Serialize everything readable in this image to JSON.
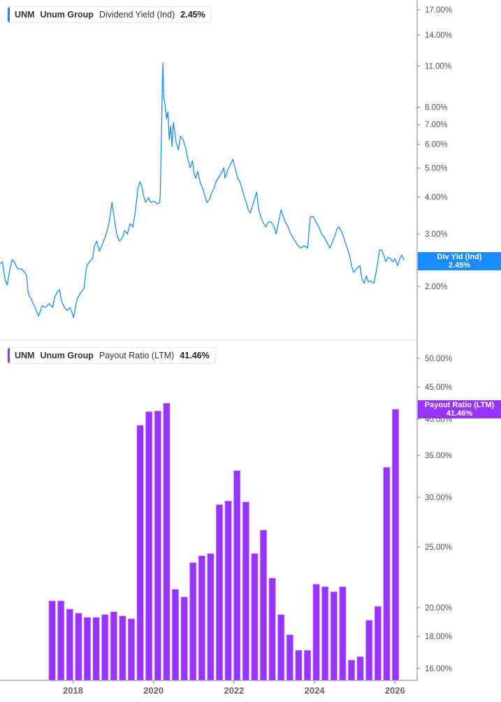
{
  "colors": {
    "yield": "#1a8cff",
    "payout": "#9933ff",
    "axis": "#aaaaaa"
  },
  "top_legend": {
    "ticker": "UNM",
    "company": "Unum Group",
    "metric": "Dividend Yield (Ind)",
    "value": "2.45%"
  },
  "top_tag": {
    "label": "Div Yld (Ind)",
    "value": "2.45%"
  },
  "bottom_legend": {
    "ticker": "UNM",
    "company": "Unum Group",
    "metric": "Payout Ratio (LTM)",
    "value": "41.46%"
  },
  "bottom_tag": {
    "label": "Payout Ratio (LTM)",
    "value": "41.46%"
  },
  "chart_data": [
    {
      "type": "line",
      "scale": "log",
      "y_ticks": [
        17,
        14,
        11,
        8,
        7,
        6,
        5,
        4,
        3,
        2
      ],
      "y_tick_labels": [
        "17.00%",
        "14.00%",
        "11.00%",
        "8.00%",
        "7.00%",
        "6.00%",
        "5.00%",
        "4.00%",
        "3.00%",
        "2.00%"
      ],
      "series": [
        {
          "name": "Dividend Yield (Ind)",
          "points": [
            [
              "2016-03-11",
              2.38
            ],
            [
              "2016-03-30",
              2.42
            ],
            [
              "2016-04-24",
              2.11
            ],
            [
              "2016-05-13",
              2.02
            ],
            [
              "2016-06-08",
              2.29
            ],
            [
              "2016-06-27",
              2.46
            ],
            [
              "2016-07-16",
              2.42
            ],
            [
              "2016-08-16",
              2.29
            ],
            [
              "2016-09-17",
              2.29
            ],
            [
              "2016-10-19",
              2.23
            ],
            [
              "2016-11-07",
              2.17
            ],
            [
              "2016-11-20",
              1.9
            ],
            [
              "2016-12-21",
              1.8
            ],
            [
              "2017-01-22",
              1.7
            ],
            [
              "2017-02-10",
              1.63
            ],
            [
              "2017-02-23",
              1.59
            ],
            [
              "2017-03-26",
              1.72
            ],
            [
              "2017-04-27",
              1.7
            ],
            [
              "2017-05-29",
              1.75
            ],
            [
              "2017-06-30",
              1.7
            ],
            [
              "2017-07-19",
              1.84
            ],
            [
              "2017-08-13",
              1.92
            ],
            [
              "2017-09-01",
              1.95
            ],
            [
              "2017-09-20",
              1.78
            ],
            [
              "2017-10-15",
              1.7
            ],
            [
              "2017-11-10",
              1.66
            ],
            [
              "2017-12-05",
              1.7
            ],
            [
              "2017-12-24",
              1.63
            ],
            [
              "2018-01-06",
              1.57
            ],
            [
              "2018-01-25",
              1.72
            ],
            [
              "2018-02-06",
              1.81
            ],
            [
              "2018-03-10",
              1.9
            ],
            [
              "2018-04-11",
              1.97
            ],
            [
              "2018-04-23",
              2.17
            ],
            [
              "2018-05-06",
              2.35
            ],
            [
              "2018-06-01",
              2.42
            ],
            [
              "2018-06-26",
              2.48
            ],
            [
              "2018-07-15",
              2.74
            ],
            [
              "2018-08-03",
              2.84
            ],
            [
              "2018-08-28",
              2.62
            ],
            [
              "2018-09-23",
              2.77
            ],
            [
              "2018-10-18",
              2.92
            ],
            [
              "2018-11-06",
              3.08
            ],
            [
              "2018-11-25",
              3.29
            ],
            [
              "2018-12-20",
              3.83
            ],
            [
              "2019-01-08",
              3.43
            ],
            [
              "2019-01-21",
              3.17
            ],
            [
              "2019-02-09",
              2.92
            ],
            [
              "2019-02-28",
              2.84
            ],
            [
              "2019-03-26",
              2.92
            ],
            [
              "2019-04-14",
              3.08
            ],
            [
              "2019-05-09",
              3.0
            ],
            [
              "2019-06-03",
              3.25
            ],
            [
              "2019-06-29",
              3.17
            ],
            [
              "2019-07-18",
              3.53
            ],
            [
              "2019-07-30",
              3.83
            ],
            [
              "2019-08-12",
              4.26
            ],
            [
              "2019-08-31",
              4.5
            ],
            [
              "2019-09-19",
              4.31
            ],
            [
              "2019-10-02",
              4.04
            ],
            [
              "2019-10-21",
              3.83
            ],
            [
              "2019-11-15",
              3.97
            ],
            [
              "2019-12-10",
              3.83
            ],
            [
              "2020-01-05",
              3.87
            ],
            [
              "2020-02-06",
              3.78
            ],
            [
              "2020-02-25",
              3.83
            ],
            [
              "2020-03-02",
              4.04
            ],
            [
              "2020-03-15",
              6.93
            ],
            [
              "2020-03-21",
              9.59
            ],
            [
              "2020-03-27",
              11.28
            ],
            [
              "2020-04-03",
              8.6
            ],
            [
              "2020-04-15",
              8.15
            ],
            [
              "2020-04-28",
              7.32
            ],
            [
              "2020-05-11",
              7.73
            ],
            [
              "2020-05-23",
              6.22
            ],
            [
              "2020-06-05",
              6.93
            ],
            [
              "2020-06-18",
              5.9
            ],
            [
              "2020-06-30",
              7.12
            ],
            [
              "2020-07-13",
              6.57
            ],
            [
              "2020-07-26",
              6.06
            ],
            [
              "2020-08-14",
              5.74
            ],
            [
              "2020-09-02",
              6.39
            ],
            [
              "2020-09-27",
              6.22
            ],
            [
              "2020-10-16",
              5.9
            ],
            [
              "2020-11-04",
              5.44
            ],
            [
              "2020-11-29",
              5.01
            ],
            [
              "2020-12-19",
              5.29
            ],
            [
              "2021-01-06",
              4.75
            ],
            [
              "2021-01-19",
              4.62
            ],
            [
              "2021-02-07",
              4.88
            ],
            [
              "2021-02-26",
              4.5
            ],
            [
              "2021-03-24",
              4.26
            ],
            [
              "2021-04-12",
              4.04
            ],
            [
              "2021-05-01",
              3.83
            ],
            [
              "2021-05-26",
              3.93
            ],
            [
              "2021-06-14",
              4.15
            ],
            [
              "2021-07-03",
              4.26
            ],
            [
              "2021-07-22",
              4.5
            ],
            [
              "2021-08-10",
              4.62
            ],
            [
              "2021-08-29",
              4.75
            ],
            [
              "2021-09-17",
              4.88
            ],
            [
              "2021-09-30",
              5.01
            ],
            [
              "2021-10-12",
              4.62
            ],
            [
              "2021-11-01",
              4.88
            ],
            [
              "2021-12-02",
              5.15
            ],
            [
              "2021-12-21",
              5.35
            ],
            [
              "2022-01-09",
              5.01
            ],
            [
              "2022-02-04",
              4.62
            ],
            [
              "2022-02-23",
              4.5
            ],
            [
              "2022-03-14",
              4.26
            ],
            [
              "2022-04-02",
              4.04
            ],
            [
              "2022-04-21",
              3.83
            ],
            [
              "2022-05-10",
              3.62
            ],
            [
              "2022-05-29",
              3.53
            ],
            [
              "2022-06-17",
              3.72
            ],
            [
              "2022-07-06",
              3.93
            ],
            [
              "2022-07-25",
              4.15
            ],
            [
              "2022-08-13",
              3.62
            ],
            [
              "2022-09-01",
              3.43
            ],
            [
              "2022-09-20",
              3.29
            ],
            [
              "2022-10-15",
              3.17
            ],
            [
              "2022-11-10",
              3.29
            ],
            [
              "2022-12-05",
              3.29
            ],
            [
              "2022-12-30",
              3.17
            ],
            [
              "2023-01-18",
              3.0
            ],
            [
              "2023-02-06",
              3.25
            ],
            [
              "2023-03-04",
              3.62
            ],
            [
              "2023-03-23",
              3.43
            ],
            [
              "2023-04-11",
              3.29
            ],
            [
              "2023-05-06",
              3.17
            ],
            [
              "2023-05-31",
              3.0
            ],
            [
              "2023-06-26",
              2.89
            ],
            [
              "2023-07-28",
              2.77
            ],
            [
              "2023-08-28",
              2.69
            ],
            [
              "2023-09-29",
              2.74
            ],
            [
              "2023-10-31",
              2.69
            ],
            [
              "2023-11-12",
              3.08
            ],
            [
              "2023-11-25",
              3.43
            ],
            [
              "2023-12-20",
              3.43
            ],
            [
              "2024-01-15",
              3.29
            ],
            [
              "2024-02-09",
              3.17
            ],
            [
              "2024-03-05",
              3.0
            ],
            [
              "2024-03-31",
              2.92
            ],
            [
              "2024-04-25",
              2.8
            ],
            [
              "2024-05-20",
              2.69
            ],
            [
              "2024-06-15",
              2.84
            ],
            [
              "2024-07-10",
              3.0
            ],
            [
              "2024-07-23",
              3.12
            ],
            [
              "2024-08-11",
              3.17
            ],
            [
              "2024-09-12",
              3.0
            ],
            [
              "2024-10-13",
              2.77
            ],
            [
              "2024-11-14",
              2.55
            ],
            [
              "2024-12-03",
              2.35
            ],
            [
              "2024-12-22",
              2.23
            ],
            [
              "2025-01-16",
              2.29
            ],
            [
              "2025-02-17",
              2.35
            ],
            [
              "2025-03-08",
              2.11
            ],
            [
              "2025-03-27",
              2.05
            ],
            [
              "2025-04-15",
              2.17
            ],
            [
              "2025-05-04",
              2.07
            ],
            [
              "2025-05-23",
              2.09
            ],
            [
              "2025-06-24",
              2.05
            ],
            [
              "2025-07-13",
              2.23
            ],
            [
              "2025-07-26",
              2.38
            ],
            [
              "2025-08-14",
              2.65
            ],
            [
              "2025-09-02",
              2.65
            ],
            [
              "2025-09-21",
              2.55
            ],
            [
              "2025-10-10",
              2.42
            ],
            [
              "2025-10-29",
              2.51
            ],
            [
              "2025-11-17",
              2.48
            ],
            [
              "2025-12-12",
              2.42
            ],
            [
              "2025-12-31",
              2.48
            ],
            [
              "2026-01-25",
              2.35
            ],
            [
              "2026-02-13",
              2.48
            ],
            [
              "2026-03-04",
              2.55
            ],
            [
              "2026-03-23",
              2.45
            ]
          ]
        }
      ]
    },
    {
      "type": "bar",
      "scale": "log",
      "y_ticks": [
        50,
        45,
        40,
        35,
        30,
        25,
        20,
        18,
        16
      ],
      "y_tick_labels": [
        "50.00%",
        "45.00%",
        "40.00%",
        "35.00%",
        "30.00%",
        "25.00%",
        "20.00%",
        "18.00%",
        "16.00%"
      ],
      "x_tick_labels": [
        "2018",
        "2020",
        "2022",
        "2024",
        "2026"
      ],
      "series": [
        {
          "name": "Payout Ratio (LTM)",
          "categories": [
            "2016-03-31",
            "2016-06-30",
            "2016-09-30",
            "2016-12-31",
            "2017-03-31",
            "2017-06-30",
            "2017-09-30",
            "2017-12-31",
            "2018-03-31",
            "2018-06-30",
            "2018-09-30",
            "2018-12-31",
            "2019-03-31",
            "2019-06-30",
            "2019-09-30",
            "2019-12-31",
            "2020-03-31",
            "2020-06-30",
            "2020-09-30",
            "2020-12-31",
            "2021-03-31",
            "2021-06-30",
            "2021-09-30",
            "2021-12-31",
            "2022-03-31",
            "2022-06-30",
            "2022-09-30",
            "2022-12-31",
            "2023-03-31",
            "2023-06-30",
            "2023-09-30",
            "2023-12-31",
            "2024-03-31",
            "2024-06-30",
            "2024-09-30",
            "2024-12-31",
            "2025-03-31",
            "2025-06-30",
            "2025-09-30",
            "2025-12-31"
          ],
          "values": [
            20.5,
            20.5,
            19.9,
            19.6,
            19.3,
            19.3,
            19.5,
            19.7,
            19.4,
            19.2,
            39.1,
            41.1,
            41.2,
            42.4,
            21.4,
            20.8,
            23.6,
            24.2,
            24.4,
            29.2,
            29.6,
            33.1,
            29.5,
            24.4,
            26.6,
            22.3,
            19.5,
            18.1,
            17.1,
            17.1,
            21.8,
            21.6,
            21.2,
            21.6,
            16.5,
            16.7,
            19.1,
            20.1,
            33.5,
            41.46
          ]
        }
      ]
    }
  ]
}
